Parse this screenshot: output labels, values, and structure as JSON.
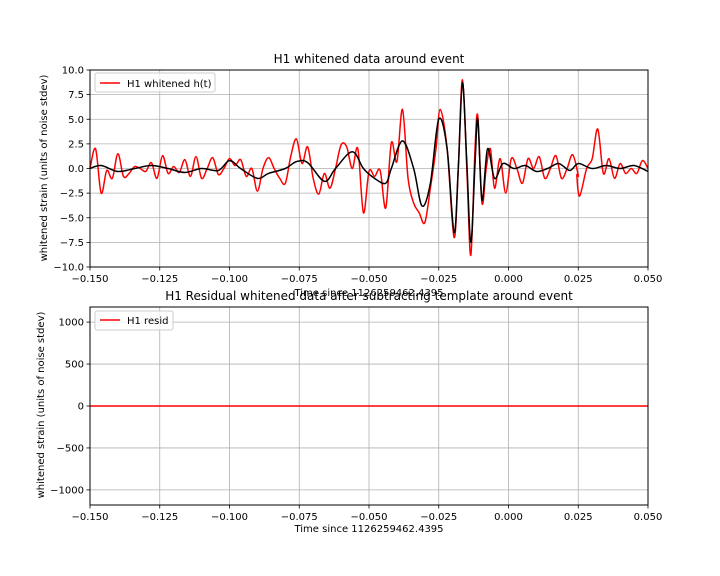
{
  "chart_data": [
    {
      "type": "line",
      "title": "H1 whitened data around event",
      "xlabel": "Time since 1126259462.4395",
      "ylabel": "whitened strain (units of noise stdev)",
      "xlim": [
        -0.15,
        0.05
      ],
      "ylim": [
        -10,
        10
      ],
      "x_ticks": [
        -0.15,
        -0.125,
        -0.1,
        -0.075,
        -0.05,
        -0.025,
        0.0,
        0.025,
        0.05
      ],
      "x_tick_labels": [
        "−0.150",
        "−0.125",
        "−0.100",
        "−0.075",
        "−0.050",
        "−0.025",
        "0.000",
        "0.025",
        "0.050"
      ],
      "y_ticks": [
        -10,
        -7.5,
        -5,
        -2.5,
        0,
        2.5,
        5,
        7.5,
        10
      ],
      "y_tick_labels": [
        "−10.0",
        "−7.5",
        "−5.0",
        "−2.5",
        "0.0",
        "2.5",
        "5.0",
        "7.5",
        "10.0"
      ],
      "grid": true,
      "legend_position": "top-left",
      "series": [
        {
          "name": "H1 whitened h(t)",
          "color": "#ff0000",
          "points": [
            [
              -0.15,
              0.0
            ],
            [
              -0.148,
              2.0
            ],
            [
              -0.146,
              -2.5
            ],
            [
              -0.144,
              -0.2
            ],
            [
              -0.142,
              -1.0
            ],
            [
              -0.14,
              1.5
            ],
            [
              -0.138,
              -0.8
            ],
            [
              -0.136,
              -0.5
            ],
            [
              -0.134,
              0.2
            ],
            [
              -0.132,
              0.0
            ],
            [
              -0.13,
              -0.3
            ],
            [
              -0.128,
              0.6
            ],
            [
              -0.126,
              -1.0
            ],
            [
              -0.124,
              1.3
            ],
            [
              -0.122,
              -0.5
            ],
            [
              -0.12,
              0.2
            ],
            [
              -0.118,
              -0.4
            ],
            [
              -0.116,
              0.9
            ],
            [
              -0.114,
              -0.8
            ],
            [
              -0.112,
              1.2
            ],
            [
              -0.11,
              -1.0
            ],
            [
              -0.108,
              0.0
            ],
            [
              -0.106,
              1.1
            ],
            [
              -0.104,
              -0.6
            ],
            [
              -0.102,
              0.0
            ],
            [
              -0.1,
              1.0
            ],
            [
              -0.098,
              0.3
            ],
            [
              -0.096,
              0.9
            ],
            [
              -0.094,
              -0.8
            ],
            [
              -0.092,
              0.0
            ],
            [
              -0.09,
              -2.3
            ],
            [
              -0.088,
              0.0
            ],
            [
              -0.086,
              1.1
            ],
            [
              -0.084,
              0.0
            ],
            [
              -0.082,
              -1.0
            ],
            [
              -0.08,
              -1.5
            ],
            [
              -0.078,
              1.3
            ],
            [
              -0.076,
              3.0
            ],
            [
              -0.074,
              0.5
            ],
            [
              -0.072,
              2.2
            ],
            [
              -0.07,
              -1.0
            ],
            [
              -0.068,
              -2.6
            ],
            [
              -0.066,
              -0.5
            ],
            [
              -0.064,
              -2.0
            ],
            [
              -0.062,
              0.0
            ],
            [
              -0.06,
              2.4
            ],
            [
              -0.058,
              2.2
            ],
            [
              -0.056,
              0.0
            ],
            [
              -0.054,
              2.0
            ],
            [
              -0.052,
              -4.5
            ],
            [
              -0.05,
              -0.3
            ],
            [
              -0.048,
              -0.8
            ],
            [
              -0.046,
              -0.2
            ],
            [
              -0.044,
              -4.0
            ],
            [
              -0.042,
              2.6
            ],
            [
              -0.04,
              0.7
            ],
            [
              -0.038,
              6.0
            ],
            [
              -0.036,
              -1.0
            ],
            [
              -0.034,
              -3.5
            ],
            [
              -0.032,
              -4.5
            ],
            [
              -0.03,
              -5.5
            ],
            [
              -0.028,
              -2.0
            ],
            [
              -0.026,
              2.0
            ],
            [
              -0.0245,
              6.0
            ],
            [
              -0.022,
              2.0
            ],
            [
              -0.0195,
              -7.0
            ],
            [
              -0.018,
              0.0
            ],
            [
              -0.0165,
              9.0
            ],
            [
              -0.0148,
              -1.0
            ],
            [
              -0.0135,
              -8.8
            ],
            [
              -0.012,
              2.0
            ],
            [
              -0.011,
              5.3
            ],
            [
              -0.0095,
              -3.5
            ],
            [
              -0.008,
              0.0
            ],
            [
              -0.0065,
              2.0
            ],
            [
              -0.005,
              -2.0
            ],
            [
              -0.003,
              1.0
            ],
            [
              -0.001,
              -2.5
            ],
            [
              0.001,
              1.0
            ],
            [
              0.003,
              0.0
            ],
            [
              0.005,
              -1.5
            ],
            [
              0.007,
              1.0
            ],
            [
              0.009,
              0.0
            ],
            [
              0.011,
              1.2
            ],
            [
              0.013,
              -1.0
            ],
            [
              0.015,
              0.0
            ],
            [
              0.017,
              1.3
            ],
            [
              0.019,
              -1.0
            ],
            [
              0.021,
              0.0
            ],
            [
              0.023,
              1.4
            ],
            [
              0.025,
              -0.7
            ],
            [
              0.0245,
              -0.7
            ],
            [
              0.0255,
              -2.8
            ],
            [
              0.028,
              0.0
            ],
            [
              0.03,
              1.0
            ],
            [
              0.032,
              4.0
            ],
            [
              0.034,
              -0.5
            ],
            [
              0.036,
              1.0
            ],
            [
              0.038,
              -1.0
            ],
            [
              0.04,
              0.5
            ],
            [
              0.042,
              -0.5
            ],
            [
              0.044,
              0.0
            ],
            [
              0.046,
              -0.5
            ],
            [
              0.048,
              0.8
            ],
            [
              0.05,
              0.0
            ]
          ]
        },
        {
          "name": "",
          "color": "#000000",
          "points": [
            [
              -0.15,
              0.0
            ],
            [
              -0.146,
              0.3
            ],
            [
              -0.14,
              -0.3
            ],
            [
              -0.134,
              0.0
            ],
            [
              -0.128,
              0.3
            ],
            [
              -0.122,
              0.0
            ],
            [
              -0.116,
              -0.4
            ],
            [
              -0.11,
              0.0
            ],
            [
              -0.104,
              -0.2
            ],
            [
              -0.1,
              0.8
            ],
            [
              -0.096,
              0.0
            ],
            [
              -0.09,
              -1.0
            ],
            [
              -0.086,
              -0.5
            ],
            [
              -0.08,
              0.0
            ],
            [
              -0.076,
              0.7
            ],
            [
              -0.072,
              0.6
            ],
            [
              -0.066,
              -1.3
            ],
            [
              -0.062,
              0.0
            ],
            [
              -0.056,
              1.7
            ],
            [
              -0.052,
              0.0
            ],
            [
              -0.048,
              -1.0
            ],
            [
              -0.044,
              -1.5
            ],
            [
              -0.042,
              0.0
            ],
            [
              -0.038,
              2.8
            ],
            [
              -0.034,
              0.0
            ],
            [
              -0.031,
              -3.8
            ],
            [
              -0.028,
              -1.5
            ],
            [
              -0.025,
              5.0
            ],
            [
              -0.022,
              2.0
            ],
            [
              -0.0195,
              -6.5
            ],
            [
              -0.018,
              0.0
            ],
            [
              -0.0165,
              8.7
            ],
            [
              -0.015,
              1.0
            ],
            [
              -0.0135,
              -7.5
            ],
            [
              -0.012,
              0.5
            ],
            [
              -0.011,
              5.0
            ],
            [
              -0.0095,
              -3.2
            ],
            [
              -0.0075,
              2.0
            ],
            [
              -0.005,
              -1.0
            ],
            [
              -0.002,
              0.5
            ],
            [
              0.002,
              0.0
            ],
            [
              0.006,
              0.3
            ],
            [
              0.01,
              -0.3
            ],
            [
              0.014,
              0.0
            ],
            [
              0.018,
              0.5
            ],
            [
              0.022,
              -0.2
            ],
            [
              0.025,
              0.5
            ],
            [
              0.03,
              0.0
            ],
            [
              0.035,
              0.3
            ],
            [
              0.04,
              0.0
            ],
            [
              0.045,
              0.3
            ],
            [
              0.05,
              -0.3
            ]
          ]
        }
      ]
    },
    {
      "type": "line",
      "title": "H1 Residual whitened data after subtracting template around event",
      "xlabel": "Time since 1126259462.4395",
      "ylabel": "whitened strain (units of noise stdev)",
      "xlim": [
        -0.15,
        0.05
      ],
      "ylim": [
        -1180,
        1180
      ],
      "x_ticks": [
        -0.15,
        -0.125,
        -0.1,
        -0.075,
        -0.05,
        -0.025,
        0.0,
        0.025,
        0.05
      ],
      "x_tick_labels": [
        "−0.150",
        "−0.125",
        "−0.100",
        "−0.075",
        "−0.050",
        "−0.025",
        "0.000",
        "0.025",
        "0.050"
      ],
      "y_ticks": [
        -1000,
        -500,
        0,
        500,
        1000
      ],
      "y_tick_labels": [
        "−1000",
        "−500",
        "0",
        "500",
        "1000"
      ],
      "grid": true,
      "legend_position": "top-left",
      "series": [
        {
          "name": "H1 resid",
          "color": "#ff0000",
          "points": [
            [
              -0.15,
              0
            ],
            [
              -0.125,
              0
            ],
            [
              -0.1,
              0
            ],
            [
              -0.075,
              0
            ],
            [
              -0.05,
              0
            ],
            [
              -0.025,
              0
            ],
            [
              0.0,
              0
            ],
            [
              0.025,
              0
            ],
            [
              0.05,
              0
            ]
          ]
        }
      ]
    }
  ]
}
